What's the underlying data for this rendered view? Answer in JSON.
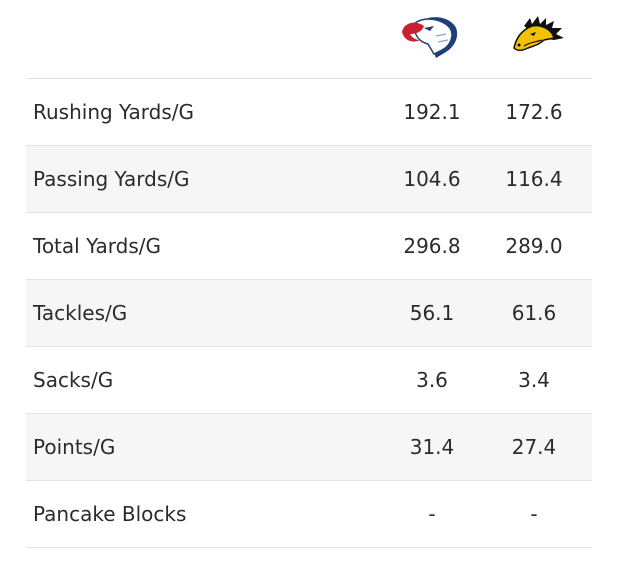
{
  "teams": {
    "away": {
      "logo_icon": "eagle-logo-icon",
      "colors": [
        "#c8202f",
        "#1f3f7a",
        "#ffffff"
      ]
    },
    "home": {
      "logo_icon": "mustang-logo-icon",
      "colors": [
        "#111111",
        "#f2c200"
      ]
    }
  },
  "rows": [
    {
      "label": "Rushing Yards/G",
      "away": "192.1",
      "home": "172.6"
    },
    {
      "label": "Passing Yards/G",
      "away": "104.6",
      "home": "116.4"
    },
    {
      "label": "Total Yards/G",
      "away": "296.8",
      "home": "289.0"
    },
    {
      "label": "Tackles/G",
      "away": "56.1",
      "home": "61.6"
    },
    {
      "label": "Sacks/G",
      "away": "3.6",
      "home": "3.4"
    },
    {
      "label": "Points/G",
      "away": "31.4",
      "home": "27.4"
    },
    {
      "label": "Pancake Blocks",
      "away": "-",
      "home": "-"
    }
  ]
}
